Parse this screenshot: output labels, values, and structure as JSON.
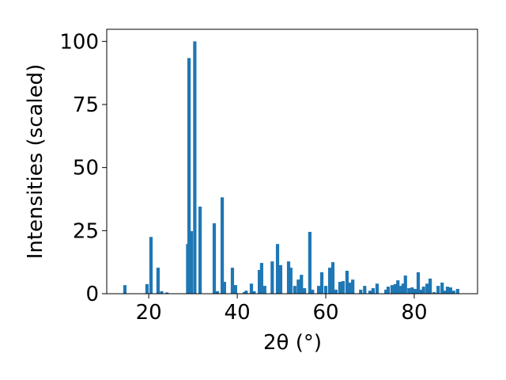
{
  "chart_data": {
    "type": "bar",
    "xlabel": "2θ (°)",
    "ylabel": "Intensities (scaled)",
    "color": "#1f77b4",
    "x": [
      14.6,
      19.6,
      20.5,
      22.1,
      22.9,
      24.1,
      28.8,
      29.1,
      29.6,
      30.4,
      31.6,
      34.8,
      35.5,
      36.6,
      37.1,
      38.9,
      39.6,
      41.6,
      42,
      43.2,
      43.8,
      45,
      45.5,
      46.2,
      47.9,
      49.1,
      49.8,
      51.6,
      52.1,
      53,
      53.8,
      54.5,
      55.2,
      56.4,
      57,
      58.4,
      59.1,
      60,
      60.9,
      61.6,
      62.3,
      63.2,
      63.9,
      64.8,
      65.4,
      66.1,
      67.9,
      68.8,
      70,
      70.7,
      71.6,
      73.6,
      74.1,
      75,
      75.7,
      76.3,
      77,
      77.5,
      78,
      78.8,
      79.5,
      80.2,
      80.9,
      81.6,
      82.1,
      82.9,
      83.6,
      84.5,
      85.4,
      86.3,
      87,
      87.5,
      88.2,
      88.9,
      89.8
    ],
    "values": [
      3.4,
      3.8,
      22.5,
      10.3,
      1,
      0.5,
      19.7,
      93.4,
      24.8,
      100,
      34.5,
      27.9,
      1,
      38.2,
      4.7,
      10.3,
      3.4,
      0.6,
      1.2,
      4,
      1,
      9.4,
      12.2,
      3.1,
      12.8,
      19.7,
      11.3,
      12.8,
      10.3,
      3.1,
      5.6,
      7.5,
      2.2,
      24.5,
      1.6,
      3.1,
      8.5,
      3.1,
      10.3,
      12.5,
      1.6,
      4.7,
      5,
      9.1,
      4.4,
      5.6,
      1.6,
      3.1,
      1.2,
      2.2,
      4,
      1.6,
      2.8,
      3.4,
      3.8,
      5.3,
      3.1,
      4,
      7.2,
      2.2,
      2.5,
      1.9,
      8.5,
      1.6,
      2.8,
      4,
      6,
      0.6,
      3.1,
      4.4,
      1.2,
      2.8,
      2.5,
      1.2,
      1.9
    ],
    "xlim": [
      10.5,
      94.3
    ],
    "xticks": [
      20,
      40,
      60,
      80
    ],
    "ylim": [
      0,
      104.8
    ],
    "yticks": [
      0,
      25,
      50,
      75,
      100
    ]
  }
}
